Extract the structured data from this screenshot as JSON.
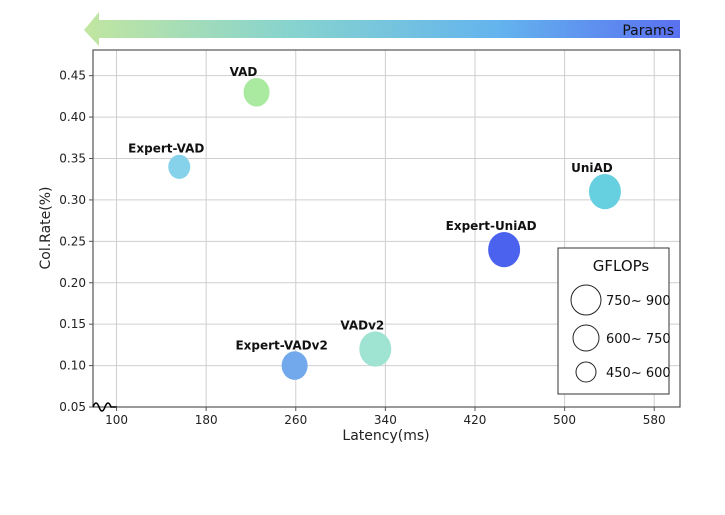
{
  "banner": {
    "label": "Params",
    "gradient_colors": [
      "#c2e6a0",
      "#86d3cf",
      "#63b3ee",
      "#5a70f0"
    ],
    "direction": "left"
  },
  "chart_data": {
    "type": "scatter",
    "subtype": "bubble",
    "xlabel": "Latency(ms)",
    "ylabel": "Col.Rate(%)",
    "xlim": [
      79,
      603
    ],
    "ylim": [
      0.05,
      0.481
    ],
    "xticks": [
      100,
      180,
      260,
      340,
      420,
      500,
      580
    ],
    "yticks": [
      0.05,
      0.1,
      0.15,
      0.2,
      0.25,
      0.3,
      0.35,
      0.4,
      0.45
    ],
    "ytick_labels": [
      "0.05",
      "0.10",
      "0.15",
      "0.20",
      "0.25",
      "0.30",
      "0.35",
      "0.40",
      "0.45"
    ],
    "grid": true,
    "axis_break": "origin",
    "points": [
      {
        "label": "VAD",
        "x": 225,
        "y": 0.43,
        "gflops": "600~ 750",
        "color": "#a9e9a0"
      },
      {
        "label": "Expert-VAD",
        "x": 156,
        "y": 0.34,
        "gflops": "450~ 600",
        "color": "#86d2ea"
      },
      {
        "label": "UniAD",
        "x": 536,
        "y": 0.31,
        "gflops": "750~ 900",
        "color": "#66cfe0"
      },
      {
        "label": "Expert-UniAD",
        "x": 446,
        "y": 0.24,
        "gflops": "750~ 900",
        "color": "#4a62ee"
      },
      {
        "label": "VADv2",
        "x": 331,
        "y": 0.12,
        "gflops": "750~ 900",
        "color": "#9fe3d2"
      },
      {
        "label": "Expert-VADv2",
        "x": 259,
        "y": 0.1,
        "gflops": "600~ 750",
        "color": "#72a8ec"
      }
    ],
    "legend": {
      "title": "GFLOPs",
      "placement": "bottom-right",
      "entries": [
        "750~ 900",
        "600~ 750",
        "450~ 600"
      ]
    }
  }
}
